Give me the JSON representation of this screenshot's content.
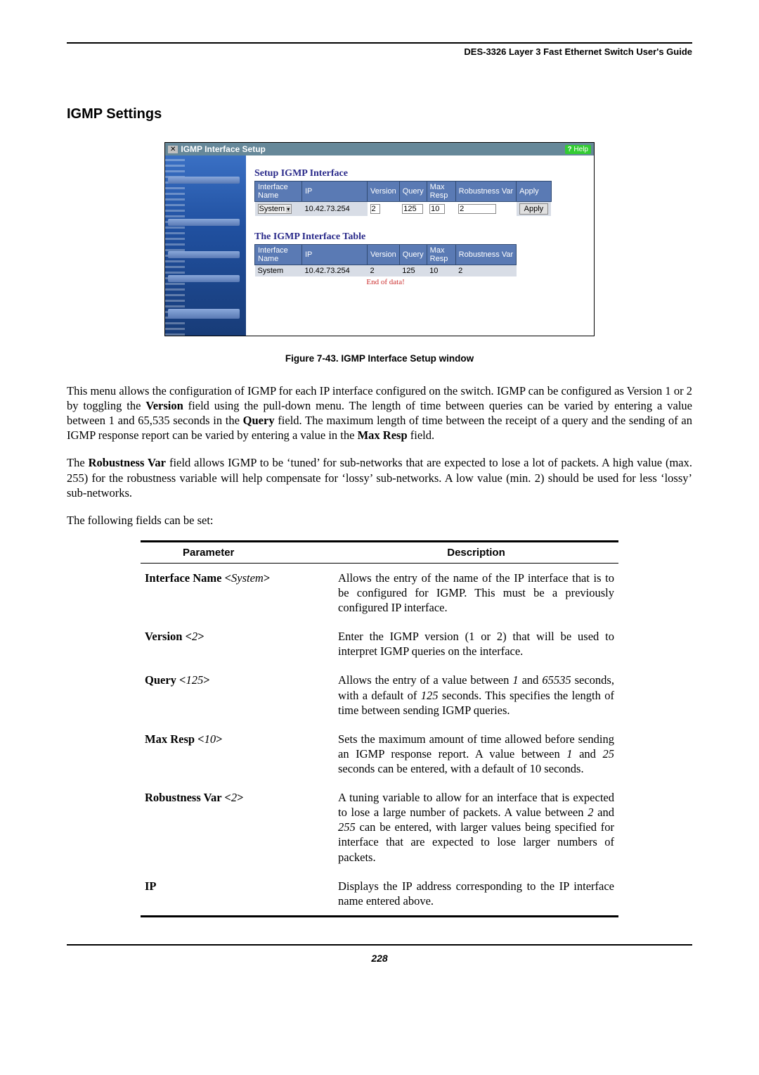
{
  "header": {
    "text": "DES-3326 Layer 3 Fast Ethernet Switch User's Guide"
  },
  "section": {
    "title": "IGMP Settings"
  },
  "screenshot": {
    "titlebar": "IGMP Interface Setup",
    "help": "Help",
    "setup": {
      "heading": "Setup IGMP Interface",
      "cols": [
        "Interface Name",
        "IP",
        "Version",
        "Query",
        "Max Resp",
        "Robustness Var",
        "Apply"
      ],
      "row": {
        "iface": "System",
        "ip": "10.42.73.254",
        "ver": "2",
        "query": "125",
        "max": "10",
        "rob": "2",
        "btn": "Apply"
      }
    },
    "table": {
      "heading": "The IGMP Interface Table",
      "cols": [
        "Interface Name",
        "IP",
        "Version",
        "Query",
        "Max Resp",
        "Robustness Var"
      ],
      "row": {
        "iface": "System",
        "ip": "10.42.73.254",
        "ver": "2",
        "query": "125",
        "max": "10",
        "rob": "2"
      },
      "end": "End of data!"
    }
  },
  "figure_caption": "Figure 7-43.  IGMP Interface Setup window",
  "para1_a": "This menu allows the configuration of IGMP for each IP interface configured on the switch. IGMP can be configured as Version 1 or 2 by toggling the ",
  "para1_b": "Version",
  "para1_c": " field using the pull-down menu. The length of time between queries can be varied by entering a value between 1 and 65,535 seconds in the ",
  "para1_d": "Query",
  "para1_e": " field. The maximum length of time between the receipt of a query and the sending of an IGMP response report can be varied by entering a value in the ",
  "para1_f": "Max Resp",
  "para1_g": " field.",
  "para2_a": "The ",
  "para2_b": "Robustness Var",
  "para2_c": " field allows IGMP to be ‘tuned’ for sub-networks that are expected to lose a lot of packets. A high value (max. 255) for the robustness variable will help compensate for ‘lossy’ sub-networks. A low value (min. 2) should be used for less ‘lossy’ sub-networks.",
  "para3": "The following fields can be set:",
  "params": {
    "head_param": "Parameter",
    "head_desc": "Description",
    "rows": [
      {
        "name_html": "Interface Name <<i>System</i>>",
        "desc": "Allows the entry of the name of the IP interface that is to be configured for IGMP. This must be a previously configured IP interface."
      },
      {
        "name_html": "Version <<i>2</i>>",
        "desc": "Enter the IGMP version (1 or 2) that will be used to interpret IGMP queries on the interface."
      },
      {
        "name_html": "Query <<i>125</i>>",
        "desc_html": "Allows the entry of a value between <i>1</i> and <i>65535</i> seconds, with a default of <i>125</i> seconds. This specifies the length of time between sending IGMP queries."
      },
      {
        "name_html": "Max Resp <<i>10</i>>",
        "desc_html": "Sets the maximum amount of time allowed before sending an IGMP response report.  A value between <i>1</i> and <i>25</i> seconds can be entered, with a default of 10 seconds."
      },
      {
        "name_html": "Robustness Var <<i>2</i>>",
        "desc_html": "A tuning variable to allow for an interface that is expected to lose a large number of packets. A value between <i>2</i> and <i>255</i> can be entered, with larger values being specified for interface that are expected to lose larger numbers of packets."
      },
      {
        "name_html": "IP",
        "desc": "Displays the IP address corresponding to the IP interface name entered above."
      }
    ]
  },
  "page_number": "228"
}
